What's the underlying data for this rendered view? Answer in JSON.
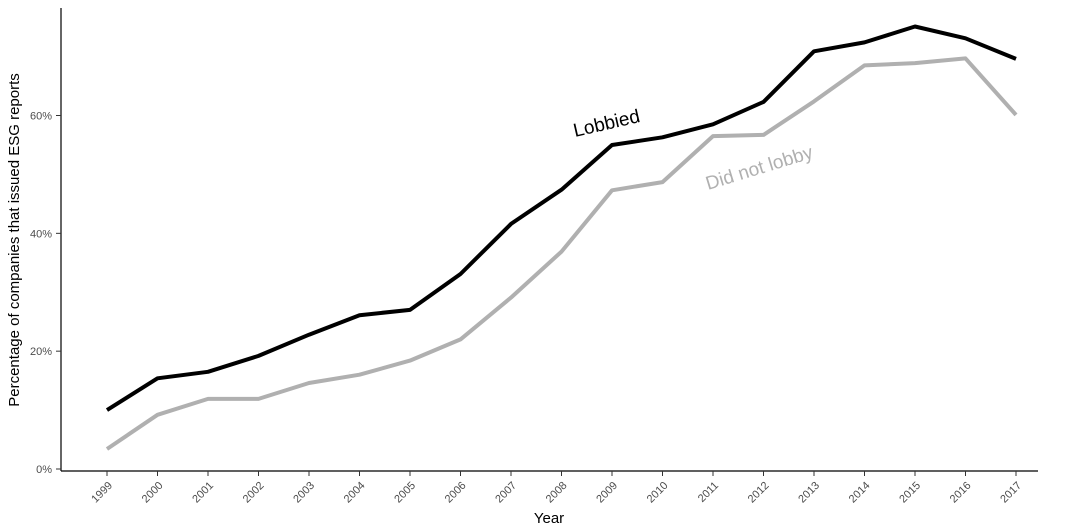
{
  "chart_data": {
    "type": "line",
    "title": "",
    "xlabel": "Year",
    "ylabel": "Percentage of companies that issued ESG reports",
    "x": [
      "1999",
      "2000",
      "2001",
      "2002",
      "2003",
      "2004",
      "2005",
      "2006",
      "2007",
      "2008",
      "2009",
      "2010",
      "2011",
      "2012",
      "2013",
      "2014",
      "2015",
      "2016",
      "2017"
    ],
    "ylim": [
      0,
      0.78
    ],
    "yticks": [
      0,
      0.2,
      0.4,
      0.6
    ],
    "ytick_labels": [
      "0%",
      "20%",
      "40%",
      "60%"
    ],
    "grid": false,
    "legend": "none (direct labels on lines)",
    "series": [
      {
        "name": "Lobbied",
        "color": "#000000",
        "values": [
          0.1,
          0.154,
          0.165,
          0.192,
          0.228,
          0.261,
          0.27,
          0.331,
          0.416,
          0.474,
          0.55,
          0.563,
          0.585,
          0.623,
          0.709,
          0.724,
          0.751,
          0.731,
          0.696
        ]
      },
      {
        "name": "Did not lobby",
        "color": "#b0b0b0",
        "values": [
          0.034,
          0.092,
          0.119,
          0.119,
          0.146,
          0.16,
          0.184,
          0.22,
          0.291,
          0.369,
          0.473,
          0.487,
          0.565,
          0.567,
          0.624,
          0.685,
          0.689,
          0.697,
          0.601
        ]
      }
    ]
  }
}
